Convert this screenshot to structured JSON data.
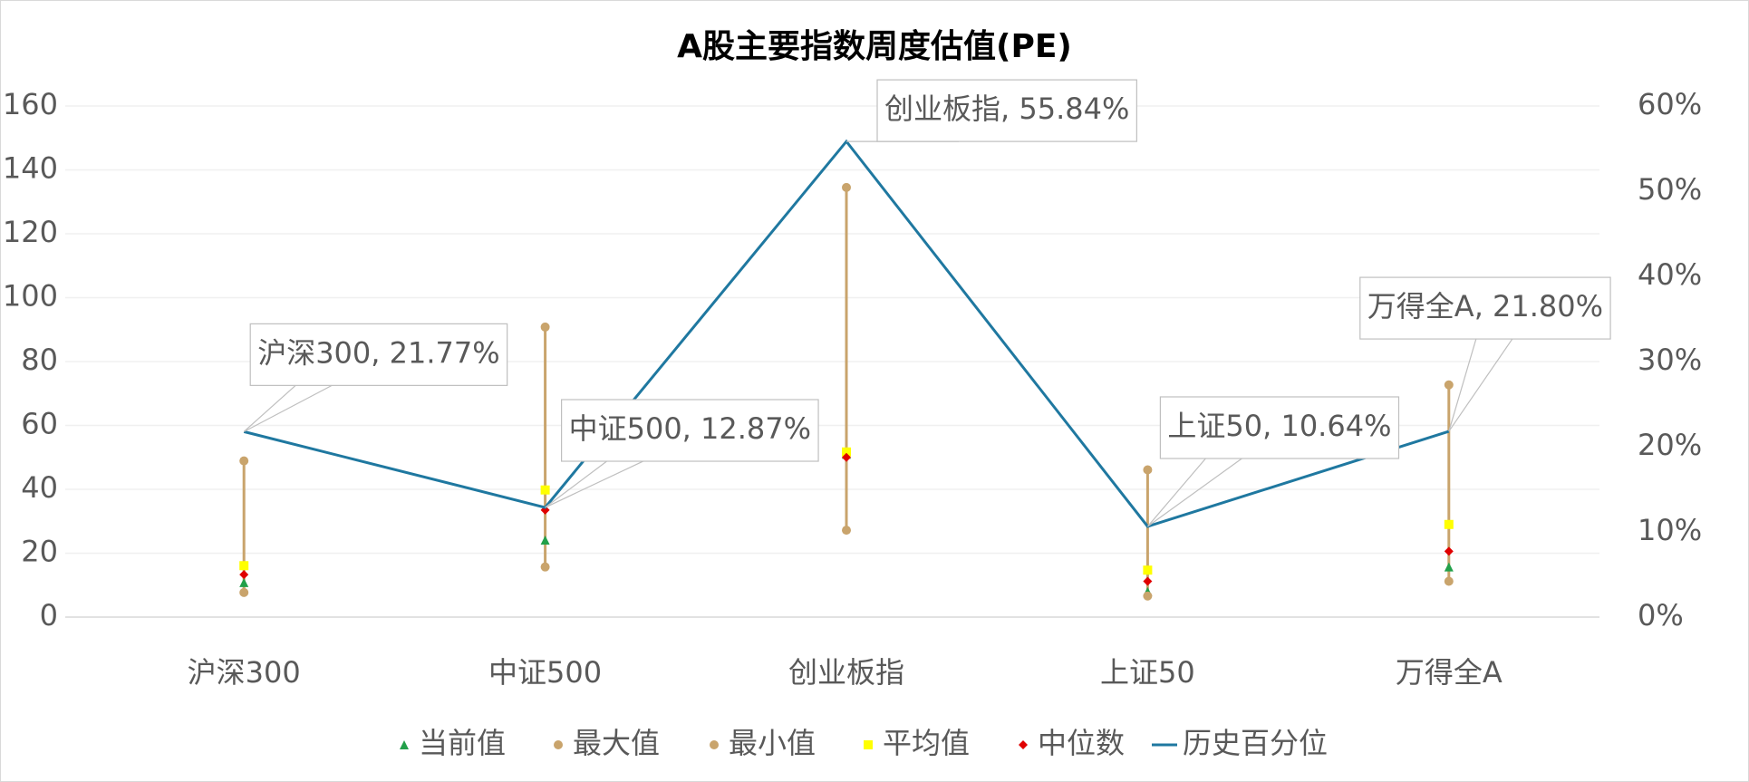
{
  "chart_data": {
    "type": "line",
    "title": "A股主要指数周度估值(PE)",
    "categories": [
      "沪深300",
      "中证500",
      "创业板指",
      "上证50",
      "万得全A"
    ],
    "ylim": [
      0,
      160
    ],
    "yticks": [
      0,
      20,
      40,
      60,
      80,
      100,
      120,
      140,
      160
    ],
    "y2lim": [
      0,
      60
    ],
    "y2ticks": [
      {
        "value": 0,
        "label": "0%"
      },
      {
        "value": 10,
        "label": "10%"
      },
      {
        "value": 20,
        "label": "20%"
      },
      {
        "value": 30,
        "label": "30%"
      },
      {
        "value": 40,
        "label": "40%"
      },
      {
        "value": 50,
        "label": "50%"
      },
      {
        "value": 60,
        "label": "60%"
      }
    ],
    "grid": true,
    "series": [
      {
        "name": "当前值",
        "color": "#22a04a",
        "marker": "triangle",
        "values": [
          10.8,
          24.1,
          51,
          8.0,
          15.7
        ]
      },
      {
        "name": "最大值",
        "color": "#c9a46c",
        "marker": "circle",
        "values": [
          48.9,
          90.8,
          134.5,
          46.1,
          72.7
        ]
      },
      {
        "name": "最小值",
        "color": "#c9a46c",
        "marker": "circle",
        "values": [
          7.7,
          15.7,
          27.2,
          6.6,
          11.2
        ]
      },
      {
        "name": "平均值",
        "color": "#ffff00",
        "marker": "square",
        "values": [
          16.1,
          39.8,
          51.7,
          14.7,
          29.0
        ]
      },
      {
        "name": "中位数",
        "color": "#e00000",
        "marker": "diamond",
        "values": [
          13.3,
          33.5,
          50.0,
          11.2,
          20.6
        ]
      },
      {
        "name": "历史百分位",
        "color": "#1f78a0",
        "marker": "line",
        "axis": "y2",
        "values": [
          21.77,
          12.87,
          55.84,
          10.64,
          21.8
        ],
        "value_labels": [
          "沪深300, 21.77%",
          "中证500, 12.87%",
          "创业板指, 55.84%",
          "上证50, 10.64%",
          "万得全A, 21.80%"
        ]
      }
    ]
  }
}
